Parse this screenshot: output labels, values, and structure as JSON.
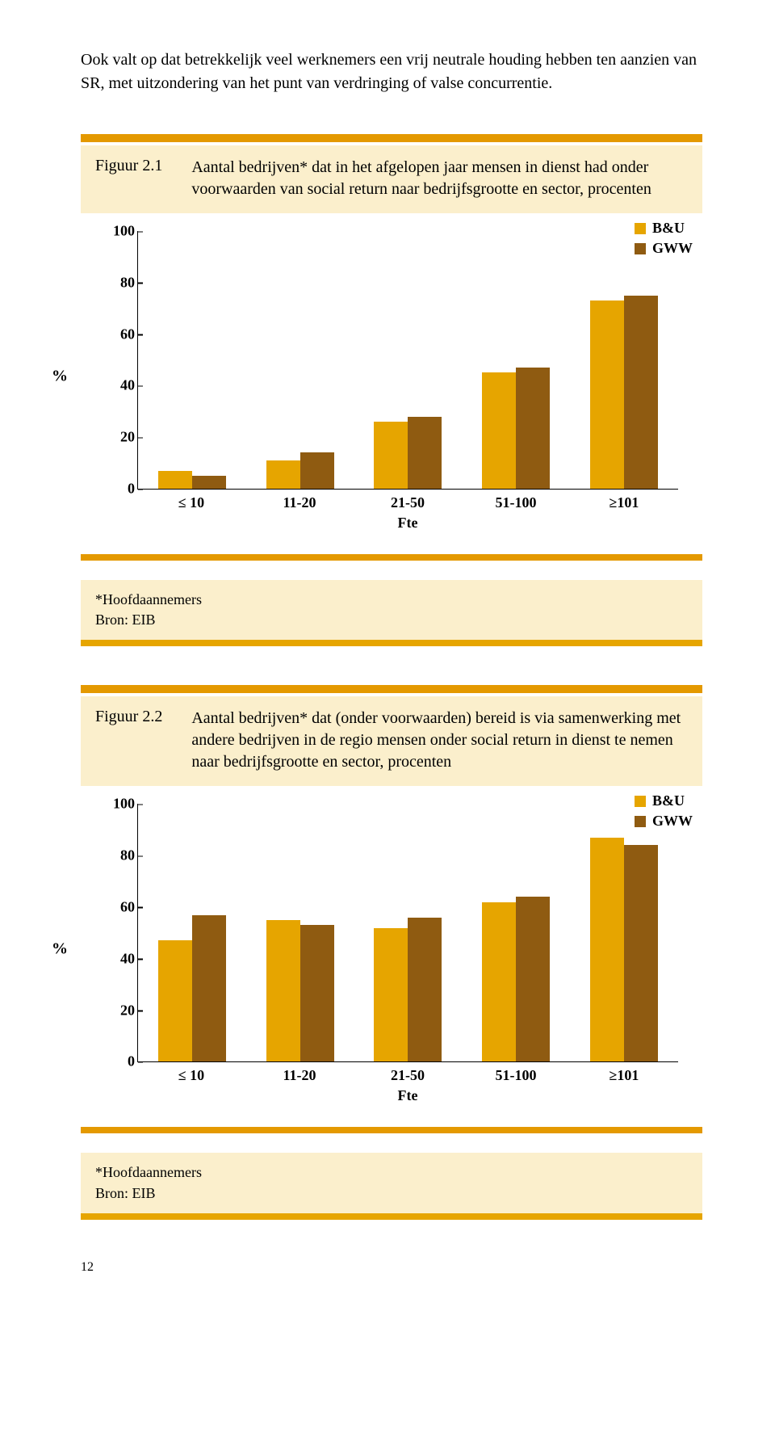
{
  "intro_text": "Ook valt op dat betrekkelijk veel werknemers een vrij neutrale houding hebben ten aanzien van SR, met uitzondering van het punt van verdringing of valse concurrentie.",
  "figure1": {
    "label": "Figuur 2.1",
    "title": "Aantal bedrijven* dat in het afgelopen jaar mensen in dienst had onder voorwaarden van social return naar bedrijfsgrootte en sector, procenten",
    "type": "bar",
    "categories": [
      "≤ 10",
      "11-20",
      "21-50",
      "51-100",
      "≥101"
    ],
    "series": [
      {
        "name": "B&U",
        "color": "#e6a500",
        "values": [
          7,
          11,
          26,
          45,
          73
        ]
      },
      {
        "name": "GWW",
        "color": "#8f5b11",
        "values": [
          5,
          14,
          28,
          47,
          75
        ]
      }
    ],
    "y_axis_label": "%",
    "y_ticks": [
      0,
      20,
      40,
      60,
      80,
      100
    ],
    "ylim_max": 100,
    "x_axis_title": "Fte",
    "footnote1": "*Hoofdaannemers",
    "footnote2": "Bron: EIB"
  },
  "figure2": {
    "label": "Figuur 2.2",
    "title": "Aantal bedrijven* dat (onder voorwaarden) bereid is via samenwerking met andere bedrijven in de regio mensen onder social return in dienst te nemen naar bedrijfsgrootte en sector, procenten",
    "type": "bar",
    "categories": [
      "≤ 10",
      "11-20",
      "21-50",
      "51-100",
      "≥101"
    ],
    "series": [
      {
        "name": "B&U",
        "color": "#e6a500",
        "values": [
          47,
          55,
          52,
          62,
          87
        ]
      },
      {
        "name": "GWW",
        "color": "#8f5b11",
        "values": [
          57,
          53,
          56,
          64,
          84
        ]
      }
    ],
    "y_axis_label": "%",
    "y_ticks": [
      0,
      20,
      40,
      60,
      80,
      100
    ],
    "ylim_max": 100,
    "x_axis_title": "Fte",
    "footnote1": "*Hoofdaannemers",
    "footnote2": "Bron: EIB"
  },
  "page_number": "12",
  "colors": {
    "accent_bar": "#e49900",
    "panel_bg": "#fbefcc",
    "series1": "#e6a500",
    "series2": "#8f5b11"
  }
}
